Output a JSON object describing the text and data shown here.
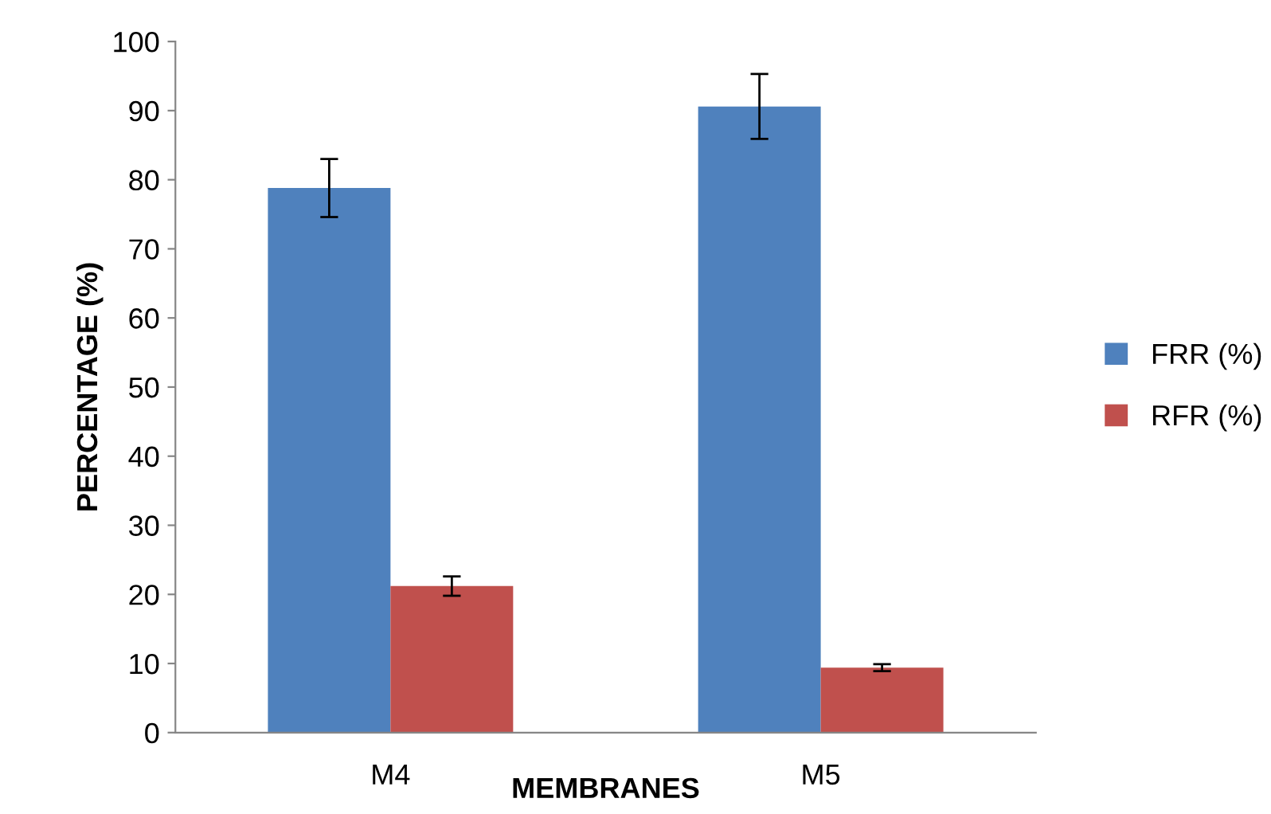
{
  "chart_data": {
    "type": "bar",
    "xlabel": "MEMBRANES",
    "ylabel": "PERCENTAGE (%)",
    "categories": [
      "M4",
      "M5"
    ],
    "series": [
      {
        "name": "FRR (%)",
        "color": "#4f81bd",
        "values": [
          78.8,
          90.6
        ],
        "errors": [
          4.2,
          4.7
        ]
      },
      {
        "name": "RFR (%)",
        "color": "#c0504d",
        "values": [
          21.2,
          9.4
        ],
        "errors": [
          1.4,
          0.5
        ]
      }
    ],
    "ylim": [
      0,
      100
    ],
    "yticks": [
      0,
      10,
      20,
      30,
      40,
      50,
      60,
      70,
      80,
      90,
      100
    ],
    "grid": false,
    "legend": "right"
  }
}
